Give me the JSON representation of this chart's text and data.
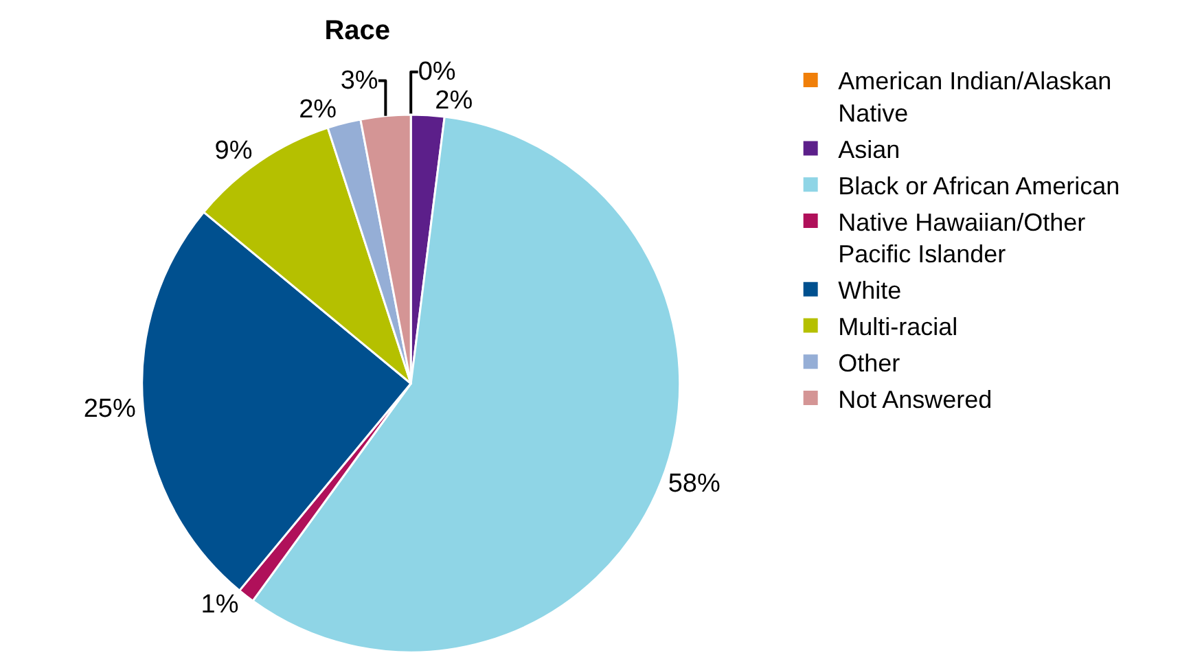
{
  "chart_data": {
    "type": "pie",
    "title": "Race",
    "categories": [
      "American Indian/Alaskan Native",
      "Asian",
      "Black or African American",
      "Native Hawaiian/Other Pacific Islander",
      "White",
      "Multi-racial",
      "Other",
      "Not Answered"
    ],
    "values": [
      0,
      2,
      58,
      1,
      25,
      9,
      2,
      3
    ],
    "value_labels": [
      "0%",
      "2%",
      "58%",
      "1%",
      "25%",
      "9%",
      "2%",
      "3%"
    ],
    "colors": [
      "#f07f09",
      "#5c1f8a",
      "#8fd5e6",
      "#b0105a",
      "#00508f",
      "#b5c000",
      "#95aed6",
      "#d49595"
    ],
    "legend": "right"
  }
}
